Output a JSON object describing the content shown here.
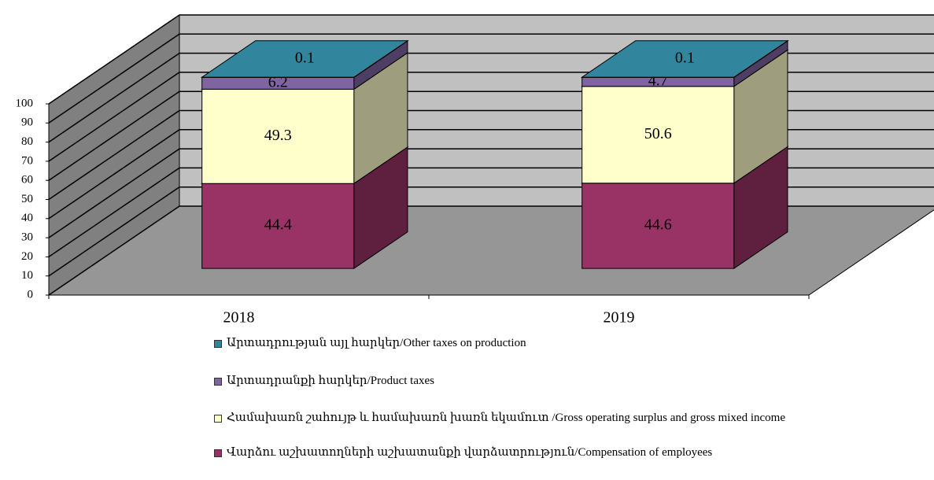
{
  "chart_data": {
    "type": "bar3d_stacked",
    "categories": [
      "2018",
      "2019"
    ],
    "series": [
      {
        "name": "Վարձու աշխատողների աշխատանքի վարձատրություն/Compensation of employees",
        "color": "#993366",
        "values": [
          44.4,
          44.6
        ]
      },
      {
        "name": "Համախառն շահույթ և համախառն խառն եկամուտ /Gross operating surplus and gross mixed income",
        "color": "#ffffcc",
        "values": [
          49.3,
          50.6
        ]
      },
      {
        "name": "Արտադրանքի հարկեր/Product taxes",
        "color": "#8064a2",
        "values": [
          6.2,
          4.7
        ]
      },
      {
        "name": "Արտադրության այլ հարկեր/Other taxes on production",
        "color": "#31859c",
        "values": [
          0.1,
          0.1
        ]
      }
    ],
    "ylim": [
      0,
      100
    ],
    "yticks": [
      0,
      10,
      20,
      30,
      40,
      50,
      60,
      70,
      80,
      90,
      100
    ],
    "grid": true
  }
}
